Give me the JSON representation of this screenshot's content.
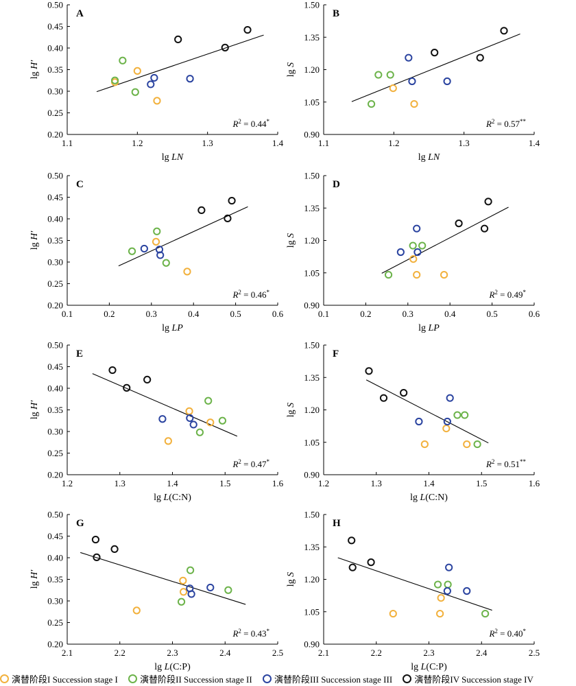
{
  "chart_data": [
    {
      "id": "A",
      "type": "scatter",
      "panel_label": "A",
      "xlabel_prefix": "lg ",
      "xlabel_italic": "LN",
      "ylabel_prefix": "lg ",
      "ylabel_italic": "H′",
      "xlim": [
        1.1,
        1.4
      ],
      "ylim": [
        0.2,
        0.5
      ],
      "xticks": [
        "1.1",
        "1.2",
        "1.3",
        "1.4"
      ],
      "yticks": [
        "0.20",
        "0.25",
        "0.30",
        "0.35",
        "0.40",
        "0.45",
        "0.50"
      ],
      "r2": "0.44",
      "sig": "*",
      "fit": {
        "x": [
          1.142,
          1.38
        ],
        "y": [
          0.299,
          0.43
        ]
      },
      "series": [
        {
          "stage": 0,
          "points": [
            [
              1.168,
              0.321
            ],
            [
              1.2,
              0.347
            ],
            [
              1.228,
              0.278
            ]
          ]
        },
        {
          "stage": 1,
          "points": [
            [
              1.168,
              0.325
            ],
            [
              1.179,
              0.371
            ],
            [
              1.197,
              0.298
            ]
          ]
        },
        {
          "stage": 2,
          "points": [
            [
              1.219,
              0.316
            ],
            [
              1.224,
              0.331
            ],
            [
              1.275,
              0.329
            ]
          ]
        },
        {
          "stage": 3,
          "points": [
            [
              1.258,
              0.42
            ],
            [
              1.325,
              0.401
            ],
            [
              1.357,
              0.442
            ]
          ]
        }
      ]
    },
    {
      "id": "B",
      "type": "scatter",
      "panel_label": "B",
      "xlabel_prefix": "lg ",
      "xlabel_italic": "LN",
      "ylabel_prefix": "lg ",
      "ylabel_italic": "S",
      "xlim": [
        1.1,
        1.4
      ],
      "ylim": [
        0.9,
        1.5
      ],
      "xticks": [
        "1.1",
        "1.2",
        "1.3",
        "1.4"
      ],
      "yticks": [
        "0.90",
        "1.05",
        "1.20",
        "1.35",
        "1.50"
      ],
      "r2": "0.57",
      "sig": "**",
      "fit": {
        "x": [
          1.14,
          1.38
        ],
        "y": [
          1.052,
          1.365
        ]
      },
      "series": [
        {
          "stage": 0,
          "points": [
            [
              1.199,
              1.114
            ],
            [
              1.229,
              1.041
            ]
          ]
        },
        {
          "stage": 1,
          "points": [
            [
              1.168,
              1.041
            ],
            [
              1.178,
              1.176
            ],
            [
              1.195,
              1.176
            ]
          ]
        },
        {
          "stage": 2,
          "points": [
            [
              1.221,
              1.255
            ],
            [
              1.226,
              1.146
            ],
            [
              1.276,
              1.146
            ]
          ]
        },
        {
          "stage": 3,
          "points": [
            [
              1.258,
              1.279
            ],
            [
              1.323,
              1.255
            ],
            [
              1.357,
              1.38
            ]
          ]
        }
      ]
    },
    {
      "id": "C",
      "type": "scatter",
      "panel_label": "C",
      "xlabel_prefix": "lg ",
      "xlabel_italic": "LP",
      "ylabel_prefix": "lg ",
      "ylabel_italic": "H′",
      "xlim": [
        0.1,
        0.6
      ],
      "ylim": [
        0.2,
        0.5
      ],
      "xticks": [
        "0.1",
        "0.2",
        "0.3",
        "0.4",
        "0.5",
        "0.6"
      ],
      "yticks": [
        "0.20",
        "0.25",
        "0.30",
        "0.35",
        "0.40",
        "0.45",
        "0.50"
      ],
      "r2": "0.46",
      "sig": "*",
      "fit": {
        "x": [
          0.222,
          0.529
        ],
        "y": [
          0.291,
          0.428
        ]
      },
      "series": [
        {
          "stage": 0,
          "points": [
            [
              0.311,
              0.347
            ],
            [
              0.385,
              0.278
            ]
          ]
        },
        {
          "stage": 1,
          "points": [
            [
              0.254,
              0.325
            ],
            [
              0.313,
              0.371
            ],
            [
              0.335,
              0.298
            ]
          ]
        },
        {
          "stage": 2,
          "points": [
            [
              0.283,
              0.331
            ],
            [
              0.319,
              0.329
            ],
            [
              0.321,
              0.316
            ]
          ]
        },
        {
          "stage": 3,
          "points": [
            [
              0.419,
              0.42
            ],
            [
              0.481,
              0.401
            ],
            [
              0.491,
              0.442
            ]
          ]
        }
      ]
    },
    {
      "id": "D",
      "type": "scatter",
      "panel_label": "D",
      "xlabel_prefix": "lg ",
      "xlabel_italic": "LP",
      "ylabel_prefix": "lg ",
      "ylabel_italic": "S",
      "xlim": [
        0.1,
        0.6
      ],
      "ylim": [
        0.9,
        1.5
      ],
      "xticks": [
        "0.1",
        "0.2",
        "0.3",
        "0.4",
        "0.5",
        "0.6"
      ],
      "yticks": [
        "0.90",
        "1.05",
        "1.20",
        "1.35",
        "1.50"
      ],
      "r2": "0.49",
      "sig": "*",
      "fit": {
        "x": [
          0.238,
          0.539
        ],
        "y": [
          1.048,
          1.354
        ]
      },
      "series": [
        {
          "stage": 0,
          "points": [
            [
              0.313,
              1.114
            ],
            [
              0.321,
              1.041
            ],
            [
              0.386,
              1.041
            ]
          ]
        },
        {
          "stage": 1,
          "points": [
            [
              0.254,
              1.041
            ],
            [
              0.312,
              1.176
            ],
            [
              0.334,
              1.176
            ]
          ]
        },
        {
          "stage": 2,
          "points": [
            [
              0.283,
              1.146
            ],
            [
              0.321,
              1.255
            ],
            [
              0.323,
              1.146
            ]
          ]
        },
        {
          "stage": 3,
          "points": [
            [
              0.421,
              1.279
            ],
            [
              0.482,
              1.255
            ],
            [
              0.491,
              1.38
            ]
          ]
        }
      ]
    },
    {
      "id": "E",
      "type": "scatter",
      "panel_label": "E",
      "xlabel_prefix": "lg ",
      "xlabel_italic": "L",
      "xlabel_suffix": "(C:N)",
      "ylabel_prefix": "lg ",
      "ylabel_italic": "H′",
      "xlim": [
        1.2,
        1.6
      ],
      "ylim": [
        0.2,
        0.5
      ],
      "xticks": [
        "1.2",
        "1.3",
        "1.4",
        "1.5",
        "1.6"
      ],
      "yticks": [
        "0.20",
        "0.25",
        "0.30",
        "0.35",
        "0.40",
        "0.45",
        "0.50"
      ],
      "r2": "0.47",
      "sig": "*",
      "fit": {
        "x": [
          1.248,
          1.523
        ],
        "y": [
          0.434,
          0.289
        ]
      },
      "series": [
        {
          "stage": 0,
          "points": [
            [
              1.392,
              0.278
            ],
            [
              1.432,
              0.347
            ],
            [
              1.472,
              0.321
            ]
          ]
        },
        {
          "stage": 1,
          "points": [
            [
              1.452,
              0.298
            ],
            [
              1.468,
              0.371
            ],
            [
              1.495,
              0.325
            ]
          ]
        },
        {
          "stage": 2,
          "points": [
            [
              1.381,
              0.329
            ],
            [
              1.433,
              0.331
            ],
            [
              1.44,
              0.316
            ]
          ]
        },
        {
          "stage": 3,
          "points": [
            [
              1.286,
              0.442
            ],
            [
              1.313,
              0.401
            ],
            [
              1.352,
              0.42
            ]
          ]
        }
      ]
    },
    {
      "id": "F",
      "type": "scatter",
      "panel_label": "F",
      "xlabel_prefix": "lg ",
      "xlabel_italic": "L",
      "xlabel_suffix": "(C:N)",
      "ylabel_prefix": "lg ",
      "ylabel_italic": "S",
      "xlim": [
        1.2,
        1.6
      ],
      "ylim": [
        0.9,
        1.5
      ],
      "xticks": [
        "1.2",
        "1.3",
        "1.4",
        "1.5",
        "1.6"
      ],
      "yticks": [
        "0.90",
        "1.05",
        "1.20",
        "1.35",
        "1.50"
      ],
      "r2": "0.51",
      "sig": "**",
      "fit": {
        "x": [
          1.281,
          1.513
        ],
        "y": [
          1.339,
          1.047
        ]
      },
      "series": [
        {
          "stage": 0,
          "points": [
            [
              1.392,
              1.041
            ],
            [
              1.433,
              1.114
            ],
            [
              1.472,
              1.041
            ]
          ]
        },
        {
          "stage": 1,
          "points": [
            [
              1.454,
              1.176
            ],
            [
              1.468,
              1.176
            ],
            [
              1.492,
              1.041
            ]
          ]
        },
        {
          "stage": 2,
          "points": [
            [
              1.381,
              1.146
            ],
            [
              1.435,
              1.146
            ],
            [
              1.44,
              1.255
            ]
          ]
        },
        {
          "stage": 3,
          "points": [
            [
              1.286,
              1.38
            ],
            [
              1.314,
              1.255
            ],
            [
              1.352,
              1.279
            ]
          ]
        }
      ]
    },
    {
      "id": "G",
      "type": "scatter",
      "panel_label": "G",
      "xlabel_prefix": "lg ",
      "xlabel_italic": "L",
      "xlabel_suffix": "(C:P)",
      "ylabel_prefix": "lg ",
      "ylabel_italic": "H′",
      "xlim": [
        2.1,
        2.5
      ],
      "ylim": [
        0.2,
        0.5
      ],
      "xticks": [
        "2.1",
        "2.2",
        "2.3",
        "2.4",
        "2.5"
      ],
      "yticks": [
        "0.20",
        "0.25",
        "0.30",
        "0.35",
        "0.40",
        "0.45",
        "0.50"
      ],
      "r2": "0.43",
      "sig": "*",
      "fit": {
        "x": [
          2.125,
          2.439
        ],
        "y": [
          0.412,
          0.292
        ]
      },
      "series": [
        {
          "stage": 0,
          "points": [
            [
              2.232,
              0.278
            ],
            [
              2.32,
              0.347
            ],
            [
              2.321,
              0.321
            ]
          ]
        },
        {
          "stage": 1,
          "points": [
            [
              2.317,
              0.298
            ],
            [
              2.334,
              0.371
            ],
            [
              2.406,
              0.325
            ]
          ]
        },
        {
          "stage": 2,
          "points": [
            [
              2.333,
              0.329
            ],
            [
              2.336,
              0.316
            ],
            [
              2.372,
              0.331
            ]
          ]
        },
        {
          "stage": 3,
          "points": [
            [
              2.154,
              0.442
            ],
            [
              2.156,
              0.401
            ],
            [
              2.19,
              0.42
            ]
          ]
        }
      ]
    },
    {
      "id": "H",
      "type": "scatter",
      "panel_label": "H",
      "xlabel_prefix": "lg ",
      "xlabel_italic": "L",
      "xlabel_suffix": "(C:P)",
      "ylabel_prefix": "lg ",
      "ylabel_italic": "S",
      "xlim": [
        2.1,
        2.5
      ],
      "ylim": [
        0.9,
        1.5
      ],
      "xticks": [
        "2.1",
        "2.2",
        "2.3",
        "2.4",
        "2.5"
      ],
      "yticks": [
        "0.90",
        "1.05",
        "1.20",
        "1.35",
        "1.50"
      ],
      "r2": "0.40",
      "sig": "*",
      "fit": {
        "x": [
          2.127,
          2.42
        ],
        "y": [
          1.3,
          1.057
        ]
      },
      "series": [
        {
          "stage": 0,
          "points": [
            [
              2.232,
              1.041
            ],
            [
              2.321,
              1.041
            ],
            [
              2.323,
              1.114
            ]
          ]
        },
        {
          "stage": 1,
          "points": [
            [
              2.317,
              1.176
            ],
            [
              2.336,
              1.176
            ],
            [
              2.407,
              1.041
            ]
          ]
        },
        {
          "stage": 2,
          "points": [
            [
              2.335,
              1.146
            ],
            [
              2.338,
              1.255
            ],
            [
              2.372,
              1.146
            ]
          ]
        },
        {
          "stage": 3,
          "points": [
            [
              2.153,
              1.38
            ],
            [
              2.155,
              1.255
            ],
            [
              2.19,
              1.279
            ]
          ]
        }
      ]
    }
  ],
  "legend": [
    {
      "label": "演替阶段I Succession stage I",
      "color": "#f2b13d"
    },
    {
      "label": "演替阶段II Succession stage II",
      "color": "#6cb34a"
    },
    {
      "label": "演替阶段III Succession stage III",
      "color": "#2b44a0"
    },
    {
      "label": "演替阶段IV Succession stage IV",
      "color": "#111111"
    }
  ],
  "r2_prefix": "R",
  "r2_exponent": "2",
  "r2_equals": " = "
}
